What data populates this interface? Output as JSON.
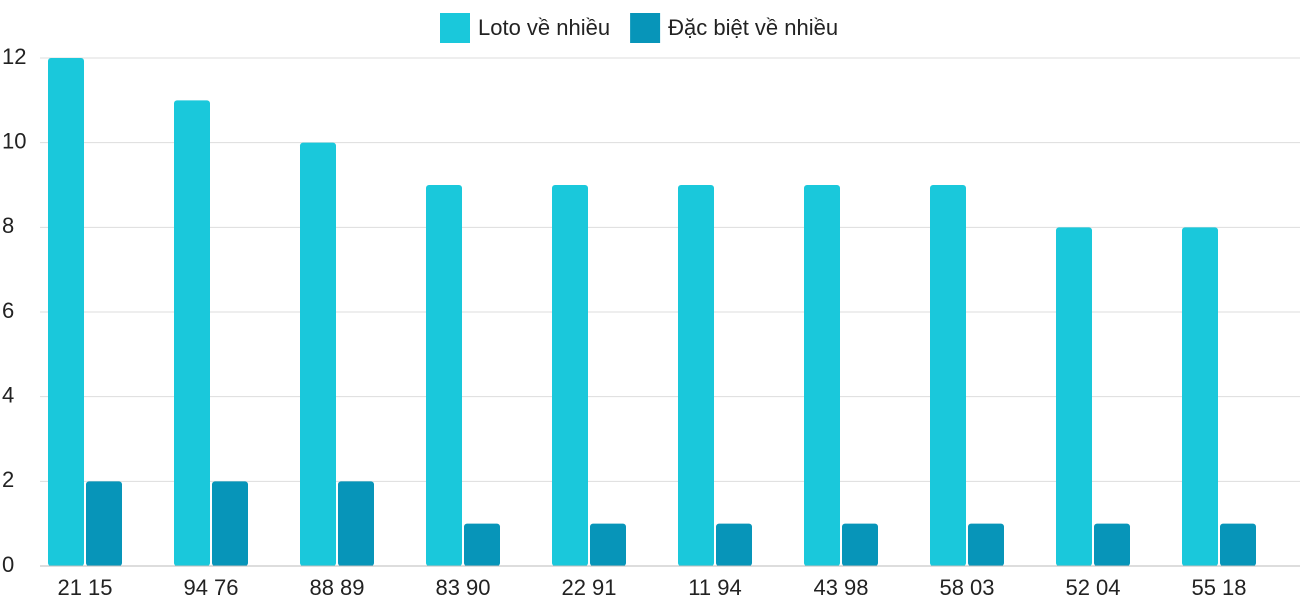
{
  "chart_data": {
    "type": "bar",
    "categories": [
      "21 15",
      "94 76",
      "88 89",
      "83 90",
      "22 91",
      "11 94",
      "43 98",
      "58 03",
      "52 04",
      "55 18"
    ],
    "series": [
      {
        "name": "Loto về nhiều",
        "color": "#1ac8db",
        "values": [
          12,
          11,
          10,
          9,
          9,
          9,
          9,
          9,
          8,
          8
        ]
      },
      {
        "name": "Đặc biệt về nhiều",
        "color": "#0795b9",
        "values": [
          2,
          2,
          2,
          1,
          1,
          1,
          1,
          1,
          1,
          1
        ]
      }
    ],
    "ylim": [
      0,
      12
    ],
    "yticks": [
      0,
      2,
      4,
      6,
      8,
      10,
      12
    ],
    "grid": true,
    "legend": "top"
  }
}
